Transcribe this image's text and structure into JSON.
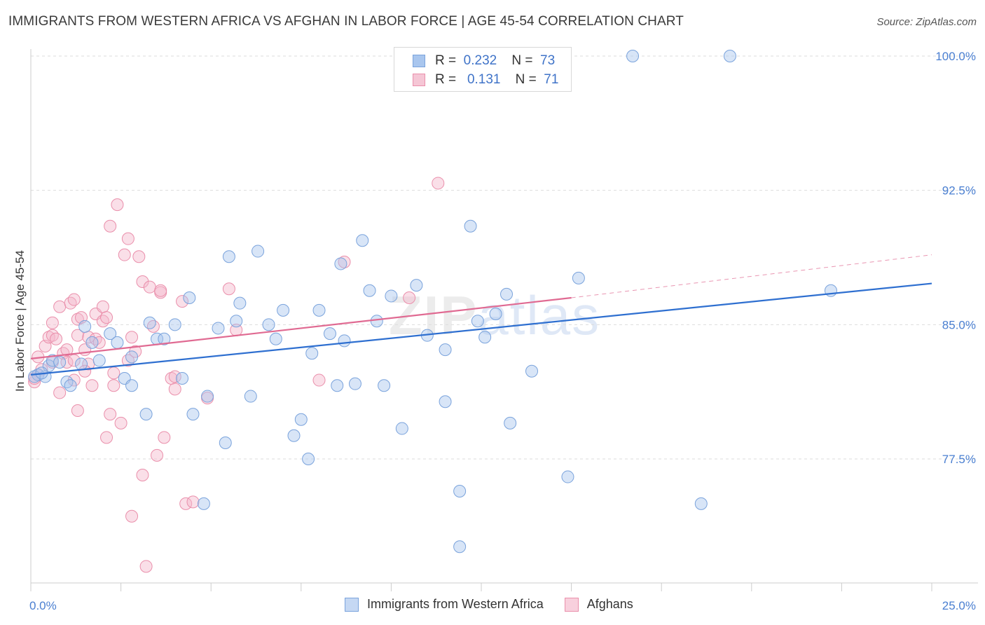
{
  "title": "IMMIGRANTS FROM WESTERN AFRICA VS AFGHAN IN LABOR FORCE | AGE 45-54 CORRELATION CHART",
  "source": "Source: ZipAtlas.com",
  "watermark": {
    "zip": "ZIP",
    "atlas": "atlas"
  },
  "legend": {
    "rows": [
      {
        "r_label": "R =",
        "r_value": "0.232",
        "n_label": "N =",
        "n_value": "73"
      },
      {
        "r_label": "R =",
        "r_value": "0.131",
        "n_label": "N =",
        "n_value": "71"
      }
    ]
  },
  "bottom_legend": [
    "Immigrants from Western Africa",
    "Afghans"
  ],
  "colors": {
    "blue_fill": "#a9c6ee",
    "blue_stroke": "#7aa3dc",
    "blue_line": "#2e6fd0",
    "pink_fill": "#f5b8cb",
    "pink_stroke": "#ea8fab",
    "pink_line": "#e06a92",
    "tick_text": "#4a7fd1",
    "grid": "#dddddd"
  },
  "chart_data": {
    "type": "scatter",
    "title": "IMMIGRANTS FROM WESTERN AFRICA VS AFGHAN IN LABOR FORCE | AGE 45-54 CORRELATION CHART",
    "xlabel": "",
    "ylabel": "In Labor Force | Age 45-54",
    "xlim": [
      0,
      25
    ],
    "ylim": [
      71.0,
      101.0
    ],
    "x_tick_labels": [
      "0.0%",
      "25.0%"
    ],
    "y_ticks": [
      77.5,
      85.0,
      92.5,
      100.0
    ],
    "y_tick_labels": [
      "77.5%",
      "85.0%",
      "92.5%",
      "100.0%"
    ],
    "grid": "horizontal-dashed",
    "legend_position": "top-center",
    "series": [
      {
        "name": "Immigrants from Western Africa",
        "color": "blue",
        "trend": {
          "x": [
            0,
            25
          ],
          "y": [
            82.2,
            87.3
          ]
        },
        "points": [
          [
            0.2,
            82.2
          ],
          [
            0.4,
            82.1
          ],
          [
            0.5,
            82.7
          ],
          [
            0.6,
            83.0
          ],
          [
            0.8,
            82.9
          ],
          [
            1.0,
            81.8
          ],
          [
            1.1,
            81.6
          ],
          [
            1.4,
            82.8
          ],
          [
            1.5,
            84.9
          ],
          [
            1.7,
            84.0
          ],
          [
            1.9,
            83.0
          ],
          [
            2.2,
            84.5
          ],
          [
            2.4,
            84.0
          ],
          [
            2.6,
            82.0
          ],
          [
            2.8,
            81.6
          ],
          [
            2.8,
            83.2
          ],
          [
            3.2,
            80.0
          ],
          [
            3.3,
            85.1
          ],
          [
            3.5,
            84.2
          ],
          [
            3.7,
            84.2
          ],
          [
            4.0,
            85.0
          ],
          [
            4.2,
            82.0
          ],
          [
            4.4,
            86.5
          ],
          [
            4.5,
            80.0
          ],
          [
            4.8,
            75.0
          ],
          [
            4.9,
            81.0
          ],
          [
            5.2,
            84.8
          ],
          [
            5.4,
            78.4
          ],
          [
            5.5,
            88.8
          ],
          [
            5.7,
            85.2
          ],
          [
            5.8,
            86.2
          ],
          [
            6.1,
            81.0
          ],
          [
            6.3,
            89.1
          ],
          [
            6.6,
            85.0
          ],
          [
            6.8,
            84.2
          ],
          [
            7.0,
            85.8
          ],
          [
            7.3,
            78.8
          ],
          [
            7.5,
            79.7
          ],
          [
            7.7,
            77.5
          ],
          [
            7.8,
            83.4
          ],
          [
            8.0,
            85.8
          ],
          [
            8.3,
            84.5
          ],
          [
            8.5,
            81.6
          ],
          [
            8.6,
            88.4
          ],
          [
            8.7,
            84.1
          ],
          [
            9.0,
            81.7
          ],
          [
            9.2,
            89.7
          ],
          [
            9.4,
            86.9
          ],
          [
            9.6,
            85.2
          ],
          [
            9.8,
            81.6
          ],
          [
            10.0,
            86.6
          ],
          [
            10.3,
            79.2
          ],
          [
            10.7,
            87.2
          ],
          [
            11.0,
            84.4
          ],
          [
            11.5,
            83.6
          ],
          [
            11.5,
            80.7
          ],
          [
            11.9,
            75.7
          ],
          [
            11.9,
            72.6
          ],
          [
            12.2,
            90.5
          ],
          [
            12.4,
            85.2
          ],
          [
            12.6,
            84.3
          ],
          [
            12.9,
            85.6
          ],
          [
            13.2,
            86.7
          ],
          [
            13.3,
            79.5
          ],
          [
            13.9,
            82.4
          ],
          [
            14.9,
            76.5
          ],
          [
            15.2,
            87.6
          ],
          [
            16.7,
            100.0
          ],
          [
            18.6,
            75.0
          ],
          [
            19.4,
            100.0
          ],
          [
            22.2,
            86.9
          ],
          [
            0.1,
            82.1
          ],
          [
            0.3,
            82.3
          ]
        ]
      },
      {
        "name": "Afghans",
        "color": "pink",
        "trend": {
          "x": [
            0,
            15
          ],
          "y": [
            83.1,
            86.5
          ],
          "dashed_to": {
            "x": 25,
            "y": 88.9
          }
        },
        "points": [
          [
            0.1,
            81.8
          ],
          [
            0.2,
            83.2
          ],
          [
            0.3,
            82.5
          ],
          [
            0.4,
            83.8
          ],
          [
            0.5,
            84.3
          ],
          [
            0.6,
            84.4
          ],
          [
            0.6,
            85.1
          ],
          [
            0.7,
            84.2
          ],
          [
            0.8,
            81.2
          ],
          [
            0.8,
            86.0
          ],
          [
            0.9,
            83.4
          ],
          [
            1.0,
            82.9
          ],
          [
            1.0,
            83.6
          ],
          [
            1.1,
            86.2
          ],
          [
            1.2,
            86.4
          ],
          [
            1.3,
            85.3
          ],
          [
            1.3,
            80.2
          ],
          [
            1.3,
            84.4
          ],
          [
            1.4,
            85.4
          ],
          [
            1.5,
            83.6
          ],
          [
            1.6,
            82.8
          ],
          [
            1.6,
            84.3
          ],
          [
            1.7,
            81.6
          ],
          [
            1.8,
            84.2
          ],
          [
            1.8,
            85.6
          ],
          [
            1.9,
            84.0
          ],
          [
            2.0,
            85.2
          ],
          [
            2.0,
            86.0
          ],
          [
            2.1,
            78.7
          ],
          [
            2.1,
            85.4
          ],
          [
            2.2,
            80.0
          ],
          [
            2.2,
            90.5
          ],
          [
            2.3,
            82.3
          ],
          [
            2.3,
            81.6
          ],
          [
            2.4,
            91.7
          ],
          [
            2.5,
            79.5
          ],
          [
            2.6,
            88.9
          ],
          [
            2.7,
            83.0
          ],
          [
            2.7,
            89.8
          ],
          [
            2.8,
            84.3
          ],
          [
            2.8,
            74.3
          ],
          [
            2.9,
            83.5
          ],
          [
            3.0,
            88.8
          ],
          [
            3.1,
            87.4
          ],
          [
            3.1,
            76.6
          ],
          [
            3.2,
            71.5
          ],
          [
            3.3,
            87.1
          ],
          [
            3.4,
            84.9
          ],
          [
            3.5,
            77.7
          ],
          [
            3.6,
            86.8
          ],
          [
            3.6,
            86.9
          ],
          [
            3.7,
            78.7
          ],
          [
            3.9,
            82.0
          ],
          [
            4.0,
            81.4
          ],
          [
            4.0,
            82.1
          ],
          [
            4.2,
            86.3
          ],
          [
            4.3,
            75.0
          ],
          [
            4.5,
            75.1
          ],
          [
            4.9,
            80.9
          ],
          [
            5.5,
            87.0
          ],
          [
            5.7,
            84.7
          ],
          [
            8.0,
            81.9
          ],
          [
            8.7,
            88.5
          ],
          [
            10.5,
            86.5
          ],
          [
            11.3,
            92.9
          ],
          [
            0.1,
            82.0
          ],
          [
            1.2,
            83.0
          ],
          [
            0.2,
            82.2
          ],
          [
            1.5,
            82.4
          ],
          [
            0.6,
            82.9
          ],
          [
            1.2,
            81.9
          ]
        ]
      }
    ]
  }
}
